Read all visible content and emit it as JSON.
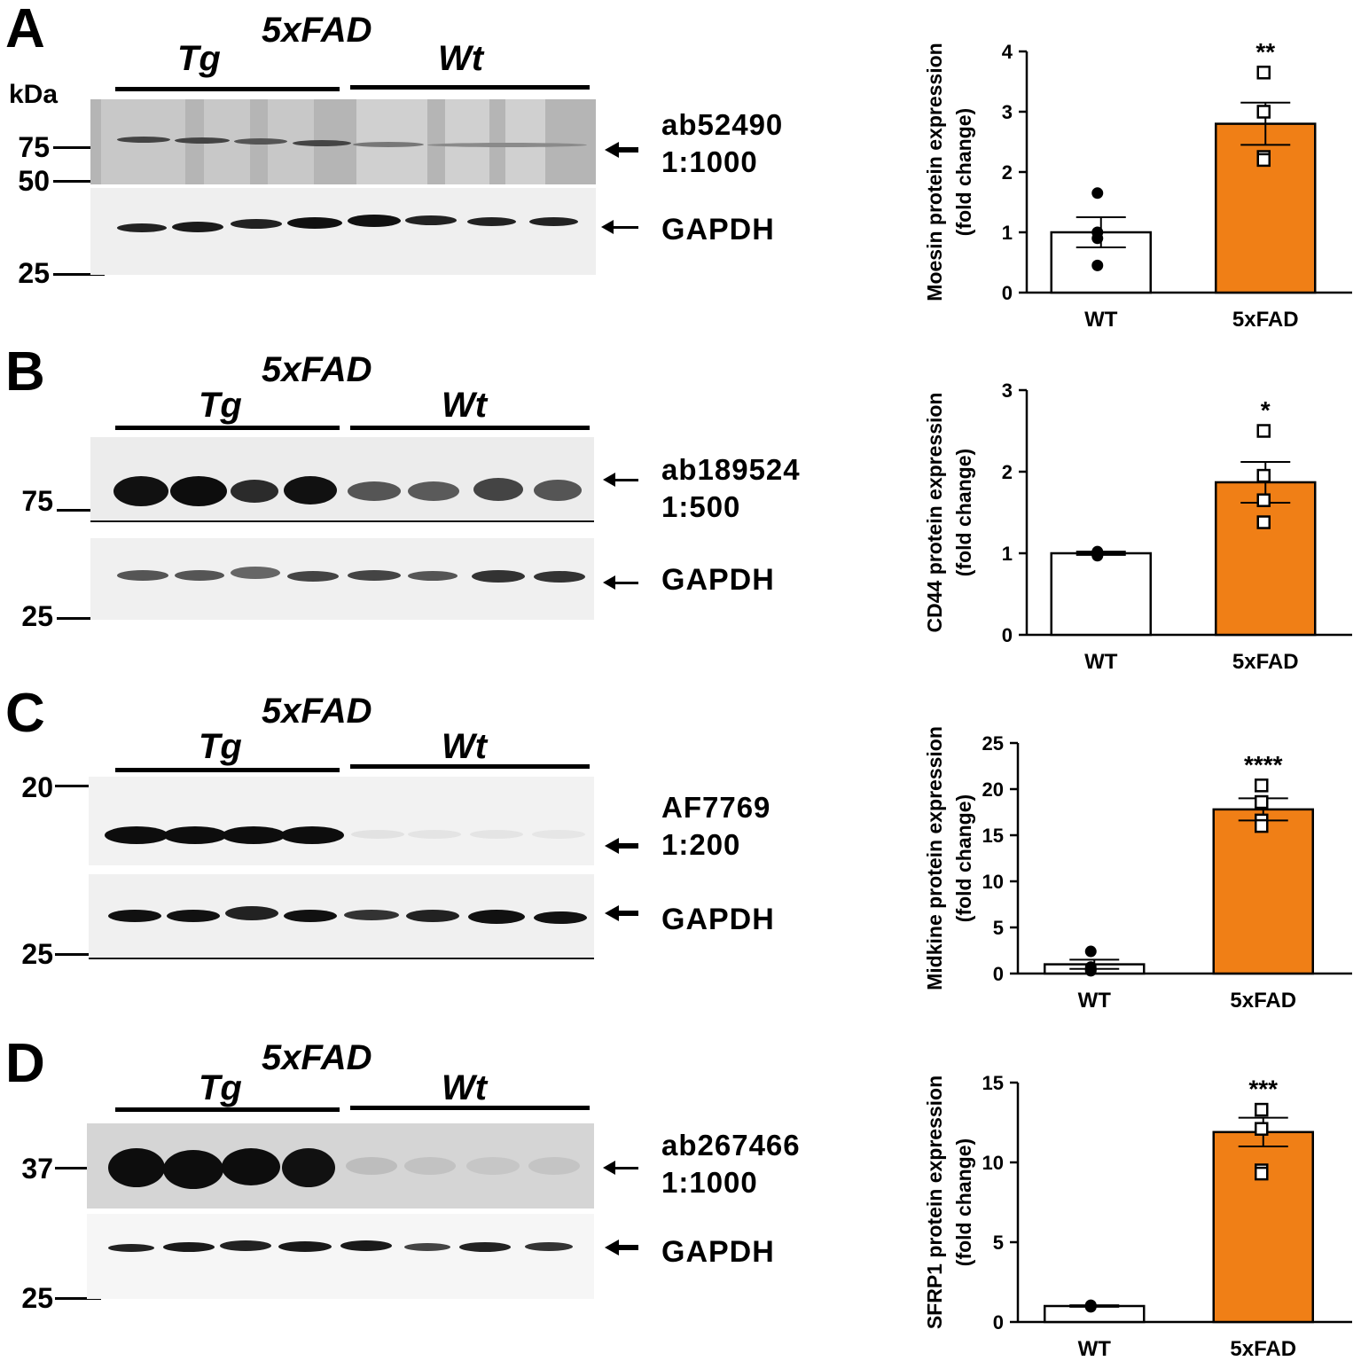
{
  "panels": [
    {
      "letter": "A",
      "model": "5xFAD",
      "group_tg": "Tg",
      "group_wt": "Wt",
      "kda_label": "kDa",
      "markers": [
        "75",
        "50",
        "25"
      ],
      "antibody": "ab52490",
      "dilution": "1:1000",
      "loading_control": "GAPDH",
      "colors": {
        "bg": "#b9b9b9",
        "band": "#4a4a4a"
      }
    },
    {
      "letter": "B",
      "model": "5xFAD",
      "group_tg": "Tg",
      "group_wt": "Wt",
      "markers": [
        "75",
        "25"
      ],
      "antibody": "ab189524",
      "dilution": "1:500",
      "loading_control": "GAPDH",
      "colors": {
        "bg": "#e8e8e8",
        "band": "#1a1a1a"
      }
    },
    {
      "letter": "C",
      "model": "5xFAD",
      "group_tg": "Tg",
      "group_wt": "Wt",
      "markers": [
        "20",
        "25"
      ],
      "antibody": "AF7769",
      "dilution": "1:200",
      "loading_control": "GAPDH",
      "colors": {
        "bg": "#efefef",
        "band": "#111111"
      }
    },
    {
      "letter": "D",
      "model": "5xFAD",
      "group_tg": "Tg",
      "group_wt": "Wt",
      "markers": [
        "37",
        "25"
      ],
      "antibody": "ab267466",
      "dilution": "1:1000",
      "loading_control": "GAPDH",
      "colors": {
        "bg": "#d7d7d7",
        "band": "#0d0d0d"
      }
    }
  ],
  "chart_data": [
    {
      "type": "bar",
      "categories": [
        "WT",
        "5xFAD"
      ],
      "values": [
        1.0,
        2.8
      ],
      "errors": [
        0.25,
        0.35
      ],
      "points": [
        [
          1.65,
          1.0,
          0.9,
          0.45
        ],
        [
          3.65,
          3.0,
          2.25,
          2.2
        ]
      ],
      "ylabel": [
        "Moesin protein expression",
        "(fold change)"
      ],
      "ylim": [
        0,
        4
      ],
      "yticks": [
        0,
        1,
        2,
        3,
        4
      ],
      "significance": "**",
      "colors": [
        "#ffffff",
        "#f07f16"
      ]
    },
    {
      "type": "bar",
      "categories": [
        "WT",
        "5xFAD"
      ],
      "values": [
        1.0,
        1.87
      ],
      "errors": [
        0.02,
        0.25
      ],
      "points": [
        [
          1.0,
          0.98,
          1.02,
          0.97
        ],
        [
          2.5,
          1.95,
          1.65,
          1.38
        ]
      ],
      "ylabel": [
        "CD44 protein expression",
        "(fold change)"
      ],
      "ylim": [
        0,
        3
      ],
      "yticks": [
        0,
        1,
        2,
        3
      ],
      "significance": "*",
      "colors": [
        "#ffffff",
        "#f07f16"
      ]
    },
    {
      "type": "bar",
      "categories": [
        "WT",
        "5xFAD"
      ],
      "values": [
        1.0,
        17.8
      ],
      "errors": [
        0.5,
        1.2
      ],
      "points": [
        [
          2.4,
          0.7,
          0.3,
          0.4
        ],
        [
          20.4,
          18.6,
          16.6,
          16.0
        ]
      ],
      "ylabel": [
        "Midkine protein expression",
        "(fold change)"
      ],
      "ylim": [
        0,
        25
      ],
      "yticks": [
        0,
        5,
        10,
        15,
        20,
        25
      ],
      "significance": "****",
      "colors": [
        "#ffffff",
        "#f07f16"
      ]
    },
    {
      "type": "bar",
      "categories": [
        "WT",
        "5xFAD"
      ],
      "values": [
        1.0,
        11.9
      ],
      "errors": [
        0.05,
        0.9
      ],
      "points": [
        [
          1.0,
          1.0,
          0.95,
          1.05
        ],
        [
          13.3,
          12.1,
          9.5,
          9.3
        ]
      ],
      "ylabel": [
        "SFRP1 protein expression",
        "(fold change)"
      ],
      "ylim": [
        0,
        15
      ],
      "yticks": [
        0,
        5,
        10,
        15
      ],
      "significance": "***",
      "colors": [
        "#ffffff",
        "#f07f16"
      ]
    }
  ]
}
